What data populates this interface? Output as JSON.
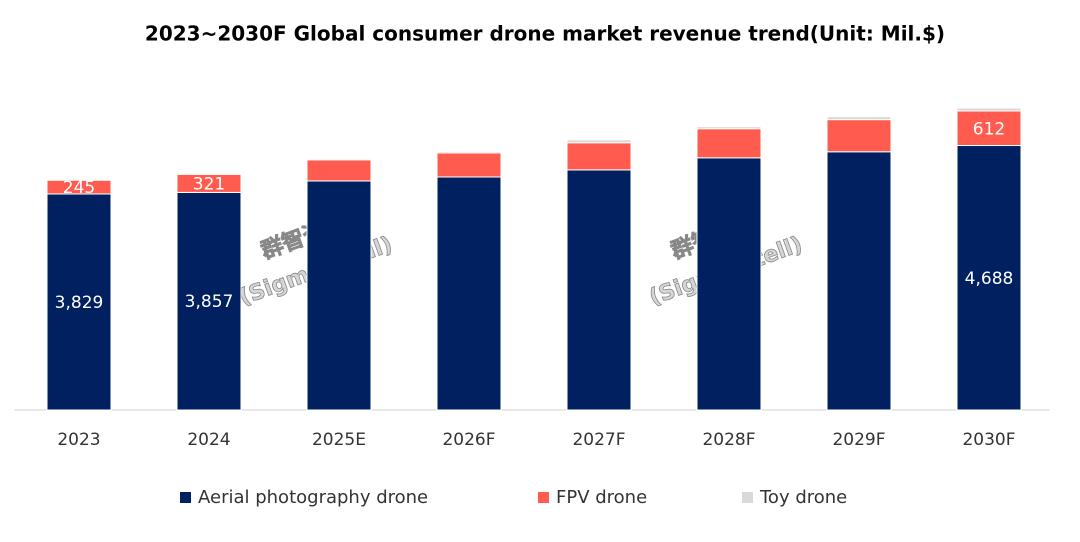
{
  "chart_data": {
    "type": "stacked_bar",
    "title": "2023~2030F Global consumer drone market revenue trend(Unit: Mil.$)",
    "watermark": [
      "群智咨询",
      "(Sigmaintell)"
    ],
    "categories": [
      "2023",
      "2024",
      "2025E",
      "2026F",
      "2027F",
      "2028F",
      "2029F",
      "2030F"
    ],
    "series": [
      {
        "name": "Aerial photography drone",
        "color": "#002060",
        "values": [
          3829,
          3857,
          4060,
          4130,
          4256,
          4470,
          4577,
          4688
        ],
        "value_labels": [
          "3,829",
          "3,857",
          null,
          null,
          null,
          null,
          null,
          "4,688"
        ]
      },
      {
        "name": "FPV drone",
        "color": "#ff5b4f",
        "values": [
          245,
          321,
          374,
          427,
          481,
          516,
          570,
          612
        ],
        "value_labels": [
          "245",
          "321",
          null,
          null,
          null,
          null,
          null,
          "612"
        ]
      },
      {
        "name": "Toy drone",
        "color": "#d9d9d9",
        "values": [
          18,
          18,
          20,
          25,
          53,
          36,
          53,
          53
        ]
      }
    ],
    "legend": "bottom"
  }
}
